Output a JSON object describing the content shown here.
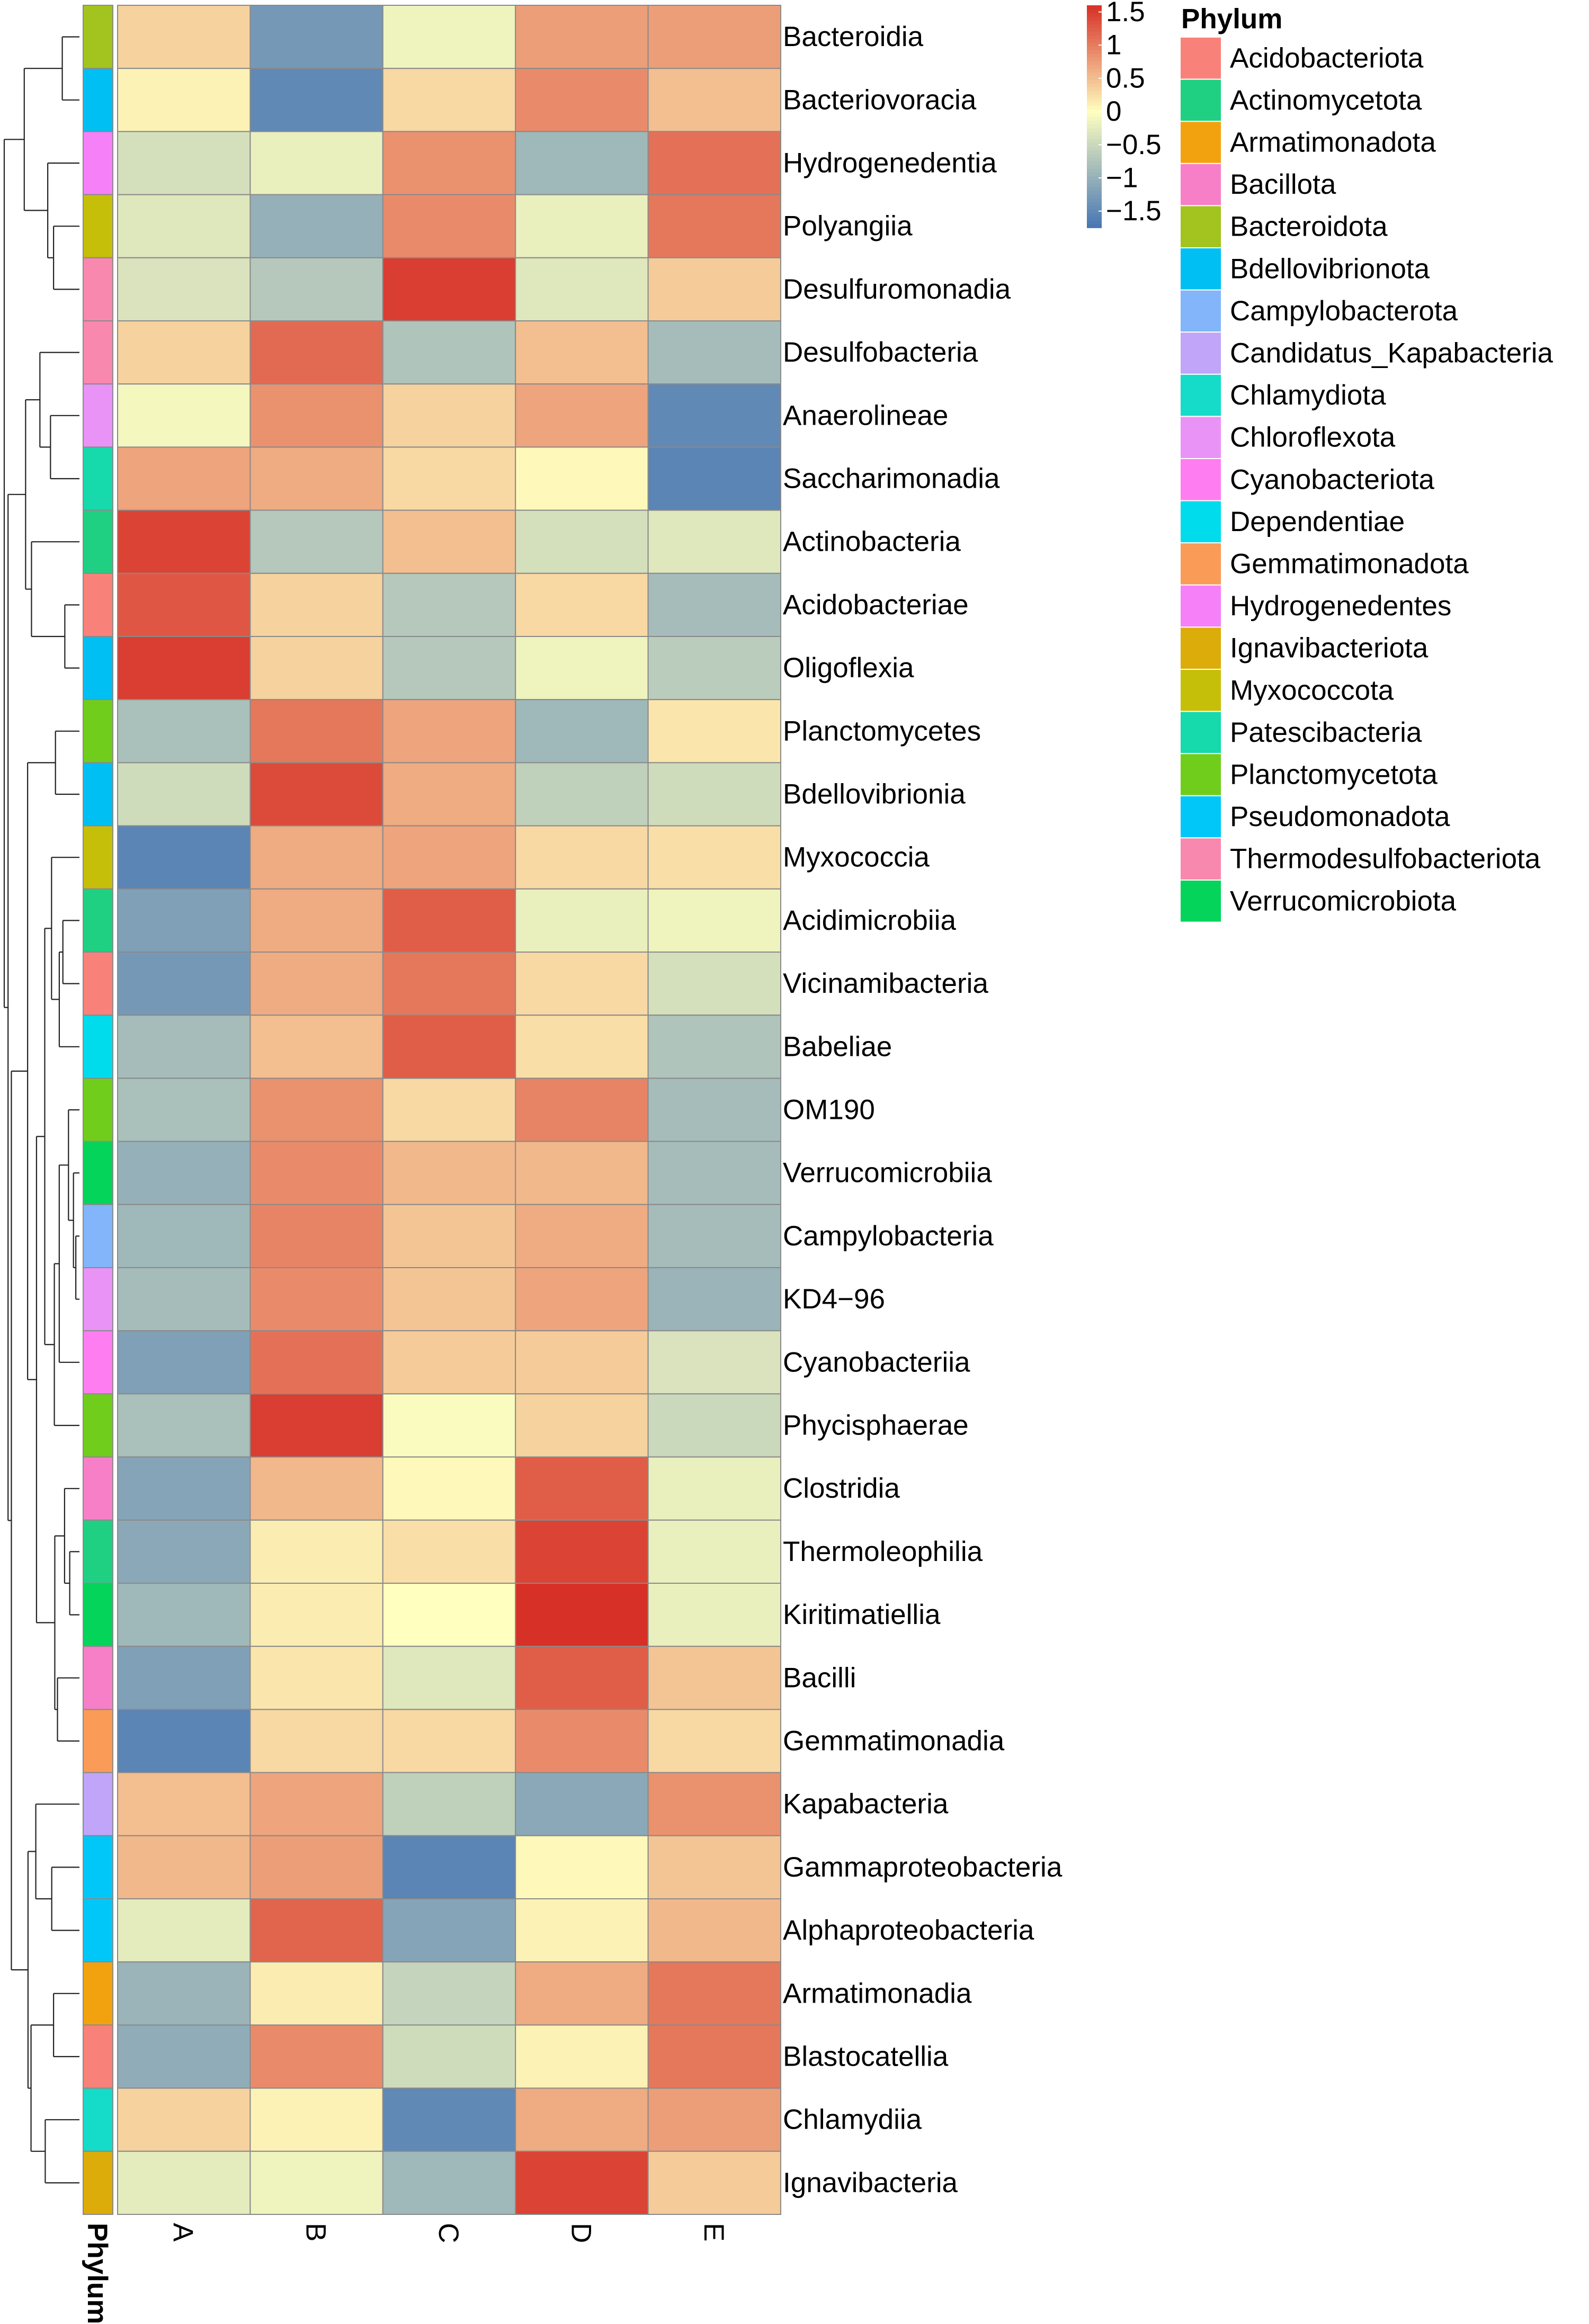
{
  "chart_data": {
    "type": "heatmap",
    "columns": [
      "A",
      "B",
      "C",
      "D",
      "E"
    ],
    "annotation_label": "Phylum",
    "colorbar": {
      "ticks": [
        1.5,
        1,
        0.5,
        0,
        -0.5,
        -1,
        -1.5
      ],
      "tick_labels": [
        "1.5",
        "1",
        "0.5",
        "0",
        "−0.5",
        "−1",
        "−1.5"
      ],
      "range": [
        -1.75,
        1.6
      ],
      "colors": {
        "low": "#4575b4",
        "mid": "#ffffbf",
        "high": "#d73027"
      }
    },
    "rows": [
      {
        "label": "Bacteroidia",
        "phylum": "Bacteroidota",
        "values": [
          0.35,
          -1.3,
          -0.15,
          0.75,
          0.75
        ]
      },
      {
        "label": "Bacteriovoracia",
        "phylum": "Bdellovibrionota",
        "values": [
          0.1,
          -1.5,
          0.3,
          0.9,
          0.5
        ]
      },
      {
        "label": "Hydrogenedentia",
        "phylum": "Hydrogenedentes",
        "values": [
          -0.4,
          -0.2,
          0.85,
          -0.9,
          1.1
        ]
      },
      {
        "label": "Polyangiia",
        "phylum": "Myxococcota",
        "values": [
          -0.3,
          -1.0,
          0.9,
          -0.2,
          1.05
        ]
      },
      {
        "label": "Desulfuromonadia",
        "phylum": "Thermodesulfobacteriota",
        "values": [
          -0.35,
          -0.7,
          1.5,
          -0.3,
          0.4
        ]
      },
      {
        "label": "Desulfobacteria",
        "phylum": "Thermodesulfobacteriota",
        "values": [
          0.35,
          1.15,
          -0.75,
          0.5,
          -0.85
        ]
      },
      {
        "label": "Anaerolineae",
        "phylum": "Chloroflexota",
        "values": [
          -0.1,
          0.85,
          0.35,
          0.7,
          -1.5
        ]
      },
      {
        "label": "Saccharimonadia",
        "phylum": "Patescibacteria",
        "values": [
          0.7,
          0.65,
          0.3,
          0.05,
          -1.55
        ]
      },
      {
        "label": "Actinobacteria",
        "phylum": "Actinomycetota",
        "values": [
          1.45,
          -0.7,
          0.5,
          -0.4,
          -0.3
        ]
      },
      {
        "label": "Acidobacteriae",
        "phylum": "Acidobacteriota",
        "values": [
          1.3,
          0.35,
          -0.7,
          0.3,
          -0.85
        ]
      },
      {
        "label": "Oligoflexia",
        "phylum": "Bdellovibrionota",
        "values": [
          1.5,
          0.35,
          -0.7,
          -0.15,
          -0.65
        ]
      },
      {
        "label": "Planctomycetes",
        "phylum": "Planctomycetota",
        "values": [
          -0.8,
          1.05,
          0.7,
          -0.9,
          0.2
        ]
      },
      {
        "label": "Bdellovibrionia",
        "phylum": "Bdellovibrionota",
        "values": [
          -0.45,
          1.4,
          0.65,
          -0.6,
          -0.45
        ]
      },
      {
        "label": "Myxococcia",
        "phylum": "Myxococcota",
        "values": [
          -1.55,
          0.65,
          0.7,
          0.3,
          0.25
        ]
      },
      {
        "label": "Acidimicrobiia",
        "phylum": "Actinomycetota",
        "values": [
          -1.2,
          0.65,
          1.25,
          -0.2,
          -0.15
        ]
      },
      {
        "label": "Vicinamibacteria",
        "phylum": "Acidobacteriota",
        "values": [
          -1.3,
          0.65,
          1.05,
          0.3,
          -0.4
        ]
      },
      {
        "label": "Babeliae",
        "phylum": "Dependentiae",
        "values": [
          -0.85,
          0.5,
          1.25,
          0.25,
          -0.75
        ]
      },
      {
        "label": "OM190",
        "phylum": "Planctomycetota",
        "values": [
          -0.8,
          0.85,
          0.3,
          0.95,
          -0.85
        ]
      },
      {
        "label": "Verrucomicrobiia",
        "phylum": "Verrucomicrobiota",
        "values": [
          -1.0,
          0.9,
          0.55,
          0.55,
          -0.85
        ]
      },
      {
        "label": "Campylobacteria",
        "phylum": "Campylobacterota",
        "values": [
          -0.9,
          0.95,
          0.45,
          0.65,
          -0.85
        ]
      },
      {
        "label": "KD4−96",
        "phylum": "Chloroflexota",
        "values": [
          -0.85,
          0.9,
          0.45,
          0.7,
          -0.95
        ]
      },
      {
        "label": "Cyanobacteriia",
        "phylum": "Cyanobacteriota",
        "values": [
          -1.2,
          1.1,
          0.4,
          0.4,
          -0.35
        ]
      },
      {
        "label": "Phycisphaerae",
        "phylum": "Planctomycetota",
        "values": [
          -0.8,
          1.5,
          -0.05,
          0.35,
          -0.5
        ]
      },
      {
        "label": "Clostridia",
        "phylum": "Bacillota",
        "values": [
          -1.15,
          0.55,
          0.05,
          1.25,
          -0.2
        ]
      },
      {
        "label": "Thermoleophilia",
        "phylum": "Actinomycetota",
        "values": [
          -1.1,
          0.15,
          0.25,
          1.45,
          -0.2
        ]
      },
      {
        "label": "Kiritimatiellia",
        "phylum": "Verrucomicrobiota",
        "values": [
          -0.9,
          0.15,
          0.0,
          1.6,
          -0.2
        ]
      },
      {
        "label": "Bacilli",
        "phylum": "Bacillota",
        "values": [
          -1.2,
          0.2,
          -0.3,
          1.25,
          0.45
        ]
      },
      {
        "label": "Gemmatimonadia",
        "phylum": "Gemmatimonadota",
        "values": [
          -1.55,
          0.3,
          0.3,
          0.9,
          0.3
        ]
      },
      {
        "label": "Kapabacteria",
        "phylum": "Candidatus_Kapabacteria",
        "values": [
          0.5,
          0.7,
          -0.6,
          -1.1,
          0.85
        ]
      },
      {
        "label": "Gammaproteobacteria",
        "phylum": "Pseudomonadota",
        "values": [
          0.55,
          0.75,
          -1.55,
          0.05,
          0.45
        ]
      },
      {
        "label": "Alphaproteobacteria",
        "phylum": "Pseudomonadota",
        "values": [
          -0.25,
          1.2,
          -1.15,
          0.1,
          0.55
        ]
      },
      {
        "label": "Armatimonadia",
        "phylum": "Armatimonadota",
        "values": [
          -0.95,
          0.15,
          -0.55,
          0.65,
          1.05
        ]
      },
      {
        "label": "Blastocatellia",
        "phylum": "Acidobacteriota",
        "values": [
          -1.05,
          0.9,
          -0.45,
          0.1,
          1.05
        ]
      },
      {
        "label": "Chlamydiia",
        "phylum": "Chlamydiota",
        "values": [
          0.35,
          0.1,
          -1.5,
          0.65,
          0.75
        ]
      },
      {
        "label": "Ignavibacteria",
        "phylum": "Ignavibacteriota",
        "values": [
          -0.25,
          -0.15,
          -0.9,
          1.45,
          0.4
        ]
      }
    ],
    "legend": {
      "title": "Phylum",
      "items": [
        {
          "name": "Acidobacteriota",
          "color": "#f8827a"
        },
        {
          "name": "Actinomycetota",
          "color": "#1fd082"
        },
        {
          "name": "Armatimonadota",
          "color": "#f3a20f"
        },
        {
          "name": "Bacillota",
          "color": "#f77fc8"
        },
        {
          "name": "Bacteroidota",
          "color": "#a3c41e"
        },
        {
          "name": "Bdellovibrionota",
          "color": "#00bff2"
        },
        {
          "name": "Campylobacterota",
          "color": "#82b5fa"
        },
        {
          "name": "Candidatus_Kapabacteria",
          "color": "#c1a5f8"
        },
        {
          "name": "Chlamydiota",
          "color": "#14dcc8"
        },
        {
          "name": "Chloroflexota",
          "color": "#ea93f7"
        },
        {
          "name": "Cyanobacteriota",
          "color": "#fe7ef1"
        },
        {
          "name": "Dependentiae",
          "color": "#00dcec"
        },
        {
          "name": "Gemmatimonadota",
          "color": "#fa9b58"
        },
        {
          "name": "Hydrogenedentes",
          "color": "#f680f8"
        },
        {
          "name": "Ignavibacteriota",
          "color": "#dcac0a"
        },
        {
          "name": "Myxococcota",
          "color": "#c6bf0a"
        },
        {
          "name": "Patescibacteria",
          "color": "#16d9ac"
        },
        {
          "name": "Planctomycetota",
          "color": "#71cd1c"
        },
        {
          "name": "Pseudomonadota",
          "color": "#00c7f7"
        },
        {
          "name": "Thermodesulfobacteriota",
          "color": "#f988ae"
        },
        {
          "name": "Verrucomicrobiota",
          "color": "#05d45a"
        }
      ]
    },
    "dendrogram": "row clustering tree on the left"
  }
}
